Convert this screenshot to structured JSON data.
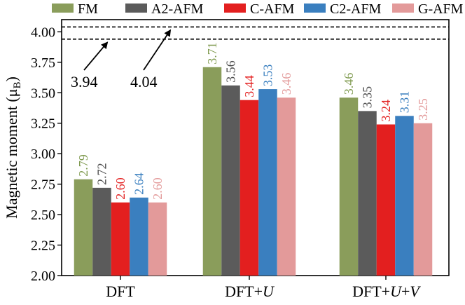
{
  "chart_data": {
    "type": "bar",
    "ylabel": "Magnetic moment (μB)",
    "ylabel_main": "Magnetic moment (μ",
    "ylabel_sub": "B",
    "ylabel_close": ")",
    "ylim": [
      2.0,
      4.1
    ],
    "yticks": [
      "2.00",
      "2.25",
      "2.50",
      "2.75",
      "3.00",
      "3.25",
      "3.50",
      "3.75",
      "4.00"
    ],
    "ytick_values": [
      2.0,
      2.25,
      2.5,
      2.75,
      3.0,
      3.25,
      3.5,
      3.75,
      4.0
    ],
    "categories": [
      {
        "plain": "DFT",
        "parts": [
          {
            "t": "DFT",
            "i": false
          }
        ]
      },
      {
        "plain": "DFT+U",
        "parts": [
          {
            "t": "DFT+",
            "i": false
          },
          {
            "t": "U",
            "i": true
          }
        ]
      },
      {
        "plain": "DFT+U+V",
        "parts": [
          {
            "t": "DFT+",
            "i": false
          },
          {
            "t": "U",
            "i": true
          },
          {
            "t": "+",
            "i": false
          },
          {
            "t": "V",
            "i": true
          }
        ]
      }
    ],
    "series": [
      {
        "name": "FM",
        "color": "#8a9d5b",
        "label_color": "#7f9a4f",
        "values": [
          2.79,
          3.71,
          3.46
        ],
        "labels": [
          "2.79",
          "3.71",
          "3.46"
        ]
      },
      {
        "name": "A2-AFM",
        "color": "#5b5b5b",
        "label_color": "#4a4a4a",
        "values": [
          2.72,
          3.56,
          3.35
        ],
        "labels": [
          "2.72",
          "3.56",
          "3.35"
        ]
      },
      {
        "name": "C-AFM",
        "color": "#e31f1f",
        "label_color": "#e31f1f",
        "values": [
          2.6,
          3.44,
          3.24
        ],
        "labels": [
          "2.60",
          "3.44",
          "3.24"
        ]
      },
      {
        "name": "C2-AFM",
        "color": "#3a7fbf",
        "label_color": "#3a7fbf",
        "values": [
          2.64,
          3.53,
          3.31
        ],
        "labels": [
          "2.64",
          "3.53",
          "3.31"
        ]
      },
      {
        "name": "G-AFM",
        "color": "#e39a9a",
        "label_color": "#e39a9a",
        "values": [
          2.6,
          3.46,
          3.25
        ],
        "labels": [
          "2.60",
          "3.46",
          "3.25"
        ]
      }
    ],
    "reference_lines": [
      {
        "value": 3.94,
        "label": "3.94"
      },
      {
        "value": 4.04,
        "label": "4.04"
      }
    ],
    "legend_position": "top"
  }
}
